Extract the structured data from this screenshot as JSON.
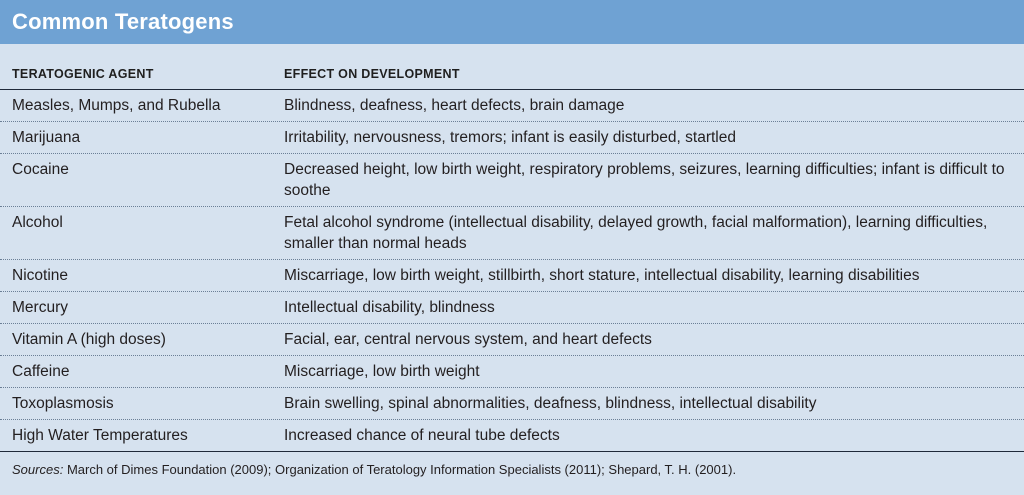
{
  "title": "Common Teratogens",
  "headers": {
    "agent": "TERATOGENIC AGENT",
    "effect": "EFFECT ON DEVELOPMENT"
  },
  "rows": [
    {
      "agent": "Measles, Mumps, and Rubella",
      "effect": "Blindness, deafness, heart defects, brain damage"
    },
    {
      "agent": "Marijuana",
      "effect": "Irritability, nervousness, tremors; infant is easily disturbed, startled"
    },
    {
      "agent": "Cocaine",
      "effect": "Decreased height, low birth weight, respiratory problems, seizures, learning difficulties; infant is difficult to soothe"
    },
    {
      "agent": "Alcohol",
      "effect": "Fetal alcohol syndrome (intellectual disability, delayed growth, facial malformation), learning difficulties, smaller than normal heads"
    },
    {
      "agent": "Nicotine",
      "effect": "Miscarriage, low birth weight, stillbirth, short stature, intellectual disability, learning disabilities"
    },
    {
      "agent": "Mercury",
      "effect": "Intellectual disability, blindness"
    },
    {
      "agent": "Vitamin A (high doses)",
      "effect": "Facial, ear, central nervous system, and heart defects"
    },
    {
      "agent": "Caffeine",
      "effect": "Miscarriage, low birth weight"
    },
    {
      "agent": "Toxoplasmosis",
      "effect": "Brain swelling, spinal abnormalities, deafness, blindness, intellectual disability"
    },
    {
      "agent": "High Water Temperatures",
      "effect": "Increased chance of neural tube defects"
    }
  ],
  "sources": {
    "label": "Sources:",
    "text": "March of Dimes Foundation (2009); Organization of Teratology Information Specialists (2011); Shepard, T. H. (2001)."
  }
}
